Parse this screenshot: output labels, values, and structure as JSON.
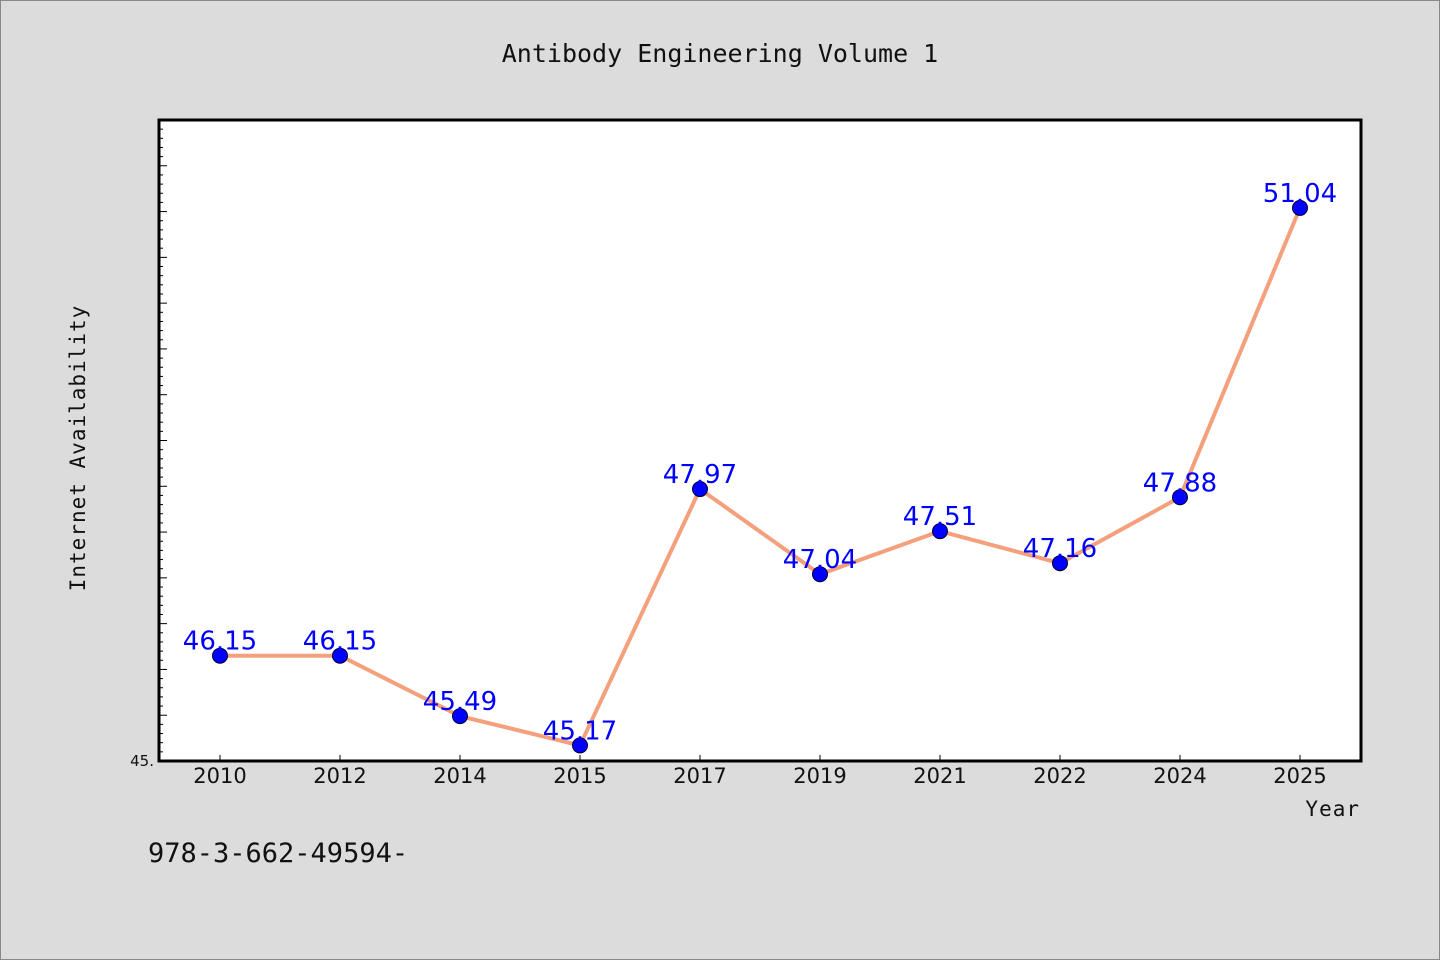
{
  "chart_data": {
    "type": "line",
    "title": "Antibody Engineering Volume 1",
    "xlabel": "Year",
    "ylabel": "Internet Availability",
    "categories": [
      "2010",
      "2012",
      "2014",
      "2015",
      "2017",
      "2019",
      "2021",
      "2022",
      "2024",
      "2025"
    ],
    "series": [
      {
        "values": [
          46.15,
          46.15,
          45.49,
          45.17,
          47.97,
          47.04,
          47.51,
          47.16,
          47.88,
          51.04
        ],
        "labels": [
          "46.15",
          "46.15",
          "45.49",
          "45.17",
          "47.97",
          "47.04",
          "47.51",
          "47.16",
          "47.88",
          "51.04"
        ]
      }
    ],
    "ylim": [
      45,
      52
    ],
    "y_min_label": "45.",
    "grid": false,
    "legend": "none",
    "colors": {
      "line": "#f4a07c",
      "marker": "#0000ff",
      "label": "#0000ff"
    }
  },
  "footnote": "978-3-662-49594-"
}
